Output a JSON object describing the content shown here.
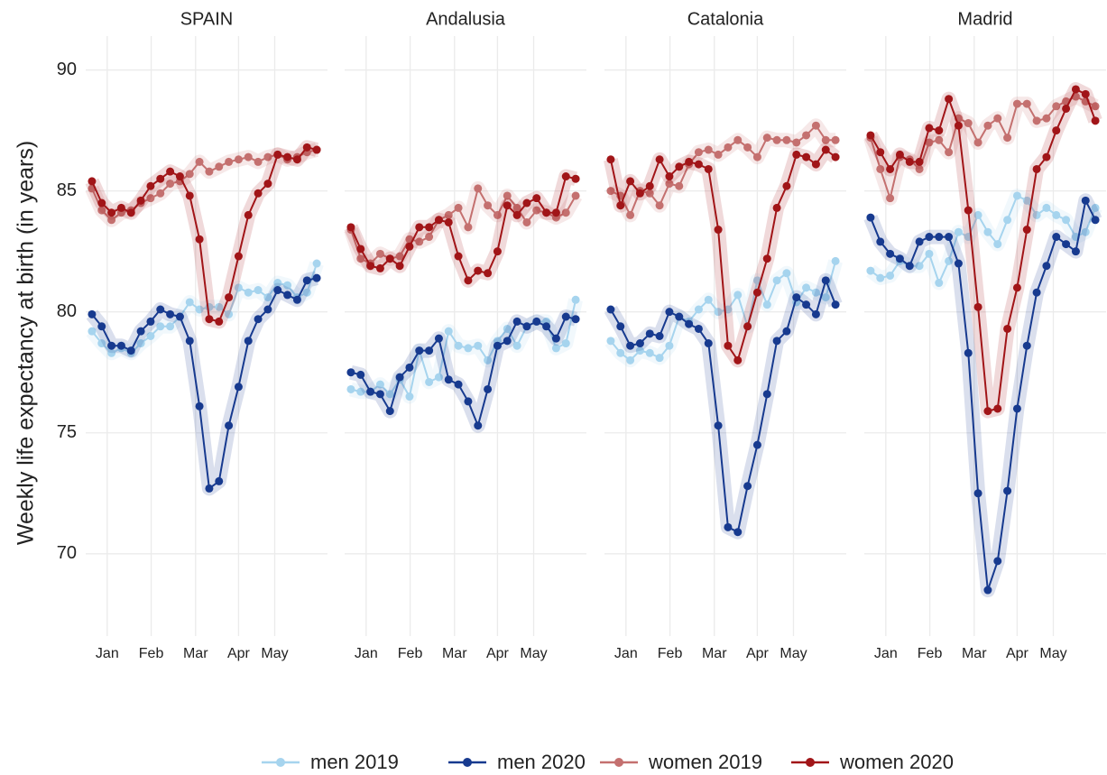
{
  "y_label": "Weekly life expectancy at birth (in years)",
  "legend": [
    {
      "name": "men 2019",
      "color": "#a6d4ee"
    },
    {
      "name": "men 2020",
      "color": "#173a8f"
    },
    {
      "name": "women 2019",
      "color": "#c4706f"
    },
    {
      "name": "women 2020",
      "color": "#a11518"
    }
  ],
  "chart_data": [
    {
      "type": "line",
      "title": "SPAIN",
      "x": [
        1,
        2,
        3,
        4,
        5,
        6,
        7,
        8,
        9,
        10,
        11,
        12,
        13,
        14,
        15,
        16,
        17,
        18,
        19,
        20,
        21,
        22,
        23,
        24
      ],
      "xlim": [
        0.36,
        25.1
      ],
      "ylim": [
        66.6,
        91.4
      ],
      "yticks": [
        70,
        75,
        80,
        85,
        90
      ],
      "xticks": [
        {
          "value": 2.56,
          "label": "Jan"
        },
        {
          "value": 7.06,
          "label": "Feb"
        },
        {
          "value": 11.6,
          "label": "Mar"
        },
        {
          "value": 16.0,
          "label": "Apr"
        },
        {
          "value": 19.7,
          "label": "May"
        }
      ],
      "series": [
        {
          "values": [
            79.2,
            78.7,
            78.3,
            78.5,
            78.3,
            78.7,
            79.0,
            79.4,
            79.4,
            79.8,
            80.4,
            80.1,
            80.2,
            80.2,
            79.9,
            81.0,
            80.8,
            80.9,
            80.6,
            81.2,
            81.1,
            80.6,
            80.8,
            82.0
          ]
        },
        {
          "values": [
            79.9,
            79.4,
            78.6,
            78.6,
            78.4,
            79.2,
            79.6,
            80.1,
            79.9,
            79.8,
            78.8,
            76.1,
            72.7,
            73.0,
            75.3,
            76.9,
            78.8,
            79.7,
            80.1,
            80.9,
            80.7,
            80.5,
            81.3,
            81.4
          ]
        },
        {
          "values": [
            85.1,
            84.2,
            83.8,
            84.1,
            84.2,
            84.5,
            84.7,
            84.9,
            85.3,
            85.4,
            85.7,
            86.2,
            85.8,
            86.0,
            86.2,
            86.3,
            86.4,
            86.2,
            86.4,
            86.5,
            86.3,
            86.4,
            86.6,
            86.7
          ]
        },
        {
          "values": [
            85.4,
            84.5,
            84.1,
            84.3,
            84.1,
            84.6,
            85.2,
            85.5,
            85.8,
            85.6,
            84.8,
            83.0,
            79.7,
            79.6,
            80.6,
            82.3,
            84.0,
            84.9,
            85.3,
            86.5,
            86.4,
            86.3,
            86.8,
            86.7
          ]
        }
      ]
    },
    {
      "type": "line",
      "title": "Andalusia",
      "x": [
        1,
        2,
        3,
        4,
        5,
        6,
        7,
        8,
        9,
        10,
        11,
        12,
        13,
        14,
        15,
        16,
        17,
        18,
        19,
        20,
        21,
        22,
        23,
        24
      ],
      "xlim": [
        0.36,
        25.1
      ],
      "ylim": [
        66.6,
        91.4
      ],
      "yticks": [
        70,
        75,
        80,
        85,
        90
      ],
      "xticks": [
        {
          "value": 2.56,
          "label": "Jan"
        },
        {
          "value": 7.06,
          "label": "Feb"
        },
        {
          "value": 11.6,
          "label": "Mar"
        },
        {
          "value": 16.0,
          "label": "Apr"
        },
        {
          "value": 19.7,
          "label": "May"
        }
      ],
      "series": [
        {
          "values": [
            76.8,
            76.7,
            76.7,
            77.0,
            76.6,
            77.2,
            76.5,
            78.4,
            77.1,
            77.3,
            79.2,
            78.6,
            78.5,
            78.6,
            78.0,
            78.8,
            79.3,
            78.6,
            79.4,
            79.6,
            79.6,
            78.5,
            78.7,
            80.5
          ]
        },
        {
          "values": [
            77.5,
            77.4,
            76.7,
            76.6,
            75.9,
            77.3,
            77.7,
            78.4,
            78.4,
            78.9,
            77.2,
            77.0,
            76.3,
            75.3,
            76.8,
            78.6,
            78.8,
            79.6,
            79.4,
            79.6,
            79.4,
            78.9,
            79.8,
            79.7
          ]
        },
        {
          "values": [
            83.4,
            82.2,
            82.0,
            82.4,
            82.2,
            82.3,
            83.0,
            82.9,
            83.1,
            83.8,
            84.0,
            84.3,
            83.5,
            85.1,
            84.4,
            84.0,
            84.8,
            84.3,
            83.7,
            84.2,
            84.1,
            83.9,
            84.1,
            84.8
          ]
        },
        {
          "values": [
            83.5,
            82.6,
            81.9,
            81.8,
            82.2,
            81.9,
            82.7,
            83.5,
            83.5,
            83.8,
            83.7,
            82.3,
            81.3,
            81.7,
            81.6,
            82.5,
            84.4,
            84.0,
            84.5,
            84.7,
            84.1,
            84.1,
            85.6,
            85.5
          ]
        }
      ]
    },
    {
      "type": "line",
      "title": "Catalonia",
      "x": [
        1,
        2,
        3,
        4,
        5,
        6,
        7,
        8,
        9,
        10,
        11,
        12,
        13,
        14,
        15,
        16,
        17,
        18,
        19,
        20,
        21,
        22,
        23,
        24
      ],
      "xlim": [
        0.36,
        25.1
      ],
      "ylim": [
        66.6,
        91.4
      ],
      "yticks": [
        70,
        75,
        80,
        85,
        90
      ],
      "xticks": [
        {
          "value": 2.56,
          "label": "Jan"
        },
        {
          "value": 7.06,
          "label": "Feb"
        },
        {
          "value": 11.6,
          "label": "Mar"
        },
        {
          "value": 16.0,
          "label": "Apr"
        },
        {
          "value": 19.7,
          "label": "May"
        }
      ],
      "series": [
        {
          "values": [
            78.8,
            78.3,
            78.0,
            78.4,
            78.3,
            78.1,
            78.6,
            79.8,
            79.6,
            80.1,
            80.5,
            80.0,
            80.1,
            80.7,
            79.4,
            81.3,
            80.3,
            81.3,
            81.6,
            80.4,
            81.0,
            80.8,
            80.6,
            82.1
          ]
        },
        {
          "values": [
            80.1,
            79.4,
            78.6,
            78.7,
            79.1,
            79.0,
            80.0,
            79.8,
            79.5,
            79.3,
            78.7,
            75.3,
            71.1,
            70.9,
            72.8,
            74.5,
            76.6,
            78.8,
            79.2,
            80.6,
            80.3,
            79.9,
            81.3,
            80.3
          ]
        },
        {
          "values": [
            85.0,
            84.8,
            84.0,
            85.0,
            84.9,
            84.4,
            85.3,
            85.2,
            86.1,
            86.6,
            86.7,
            86.5,
            86.8,
            87.1,
            86.8,
            86.4,
            87.2,
            87.1,
            87.1,
            87.0,
            87.3,
            87.7,
            87.1,
            87.1
          ]
        },
        {
          "values": [
            86.3,
            84.4,
            85.4,
            84.9,
            85.2,
            86.3,
            85.6,
            86.0,
            86.2,
            86.1,
            85.9,
            83.4,
            78.6,
            78.0,
            79.4,
            80.8,
            82.2,
            84.3,
            85.2,
            86.5,
            86.4,
            86.1,
            86.7,
            86.4
          ]
        }
      ]
    },
    {
      "type": "line",
      "title": "Madrid",
      "x": [
        1,
        2,
        3,
        4,
        5,
        6,
        7,
        8,
        9,
        10,
        11,
        12,
        13,
        14,
        15,
        16,
        17,
        18,
        19,
        20,
        21,
        22,
        23,
        24
      ],
      "xlim": [
        0.36,
        25.1
      ],
      "ylim": [
        66.6,
        91.4
      ],
      "yticks": [
        70,
        75,
        80,
        85,
        90
      ],
      "xticks": [
        {
          "value": 2.56,
          "label": "Jan"
        },
        {
          "value": 7.06,
          "label": "Feb"
        },
        {
          "value": 11.6,
          "label": "Mar"
        },
        {
          "value": 16.0,
          "label": "Apr"
        },
        {
          "value": 19.7,
          "label": "May"
        }
      ],
      "series": [
        {
          "values": [
            81.7,
            81.4,
            81.5,
            82.1,
            81.9,
            81.9,
            82.4,
            81.2,
            82.1,
            83.3,
            83.1,
            84.0,
            83.3,
            82.8,
            83.8,
            84.8,
            84.6,
            84.0,
            84.3,
            84.0,
            83.8,
            83.1,
            83.3,
            84.3
          ]
        },
        {
          "values": [
            83.9,
            82.9,
            82.4,
            82.2,
            81.9,
            82.9,
            83.1,
            83.1,
            83.1,
            82.0,
            78.3,
            72.5,
            68.5,
            69.7,
            72.6,
            76.0,
            78.6,
            80.8,
            81.9,
            83.1,
            82.8,
            82.5,
            84.6,
            83.8
          ]
        },
        {
          "values": [
            87.2,
            85.9,
            84.7,
            86.4,
            86.3,
            85.9,
            87.0,
            87.1,
            86.6,
            88.0,
            87.8,
            87.0,
            87.7,
            88.0,
            87.2,
            88.6,
            88.6,
            87.9,
            88.0,
            88.5,
            88.7,
            88.9,
            88.7,
            88.5
          ]
        },
        {
          "values": [
            87.3,
            86.6,
            85.9,
            86.5,
            86.2,
            86.2,
            87.6,
            87.5,
            88.8,
            87.7,
            84.2,
            80.2,
            75.9,
            76.0,
            79.3,
            81.0,
            83.4,
            85.9,
            86.4,
            87.5,
            88.4,
            89.2,
            89.0,
            87.9
          ]
        }
      ]
    }
  ]
}
